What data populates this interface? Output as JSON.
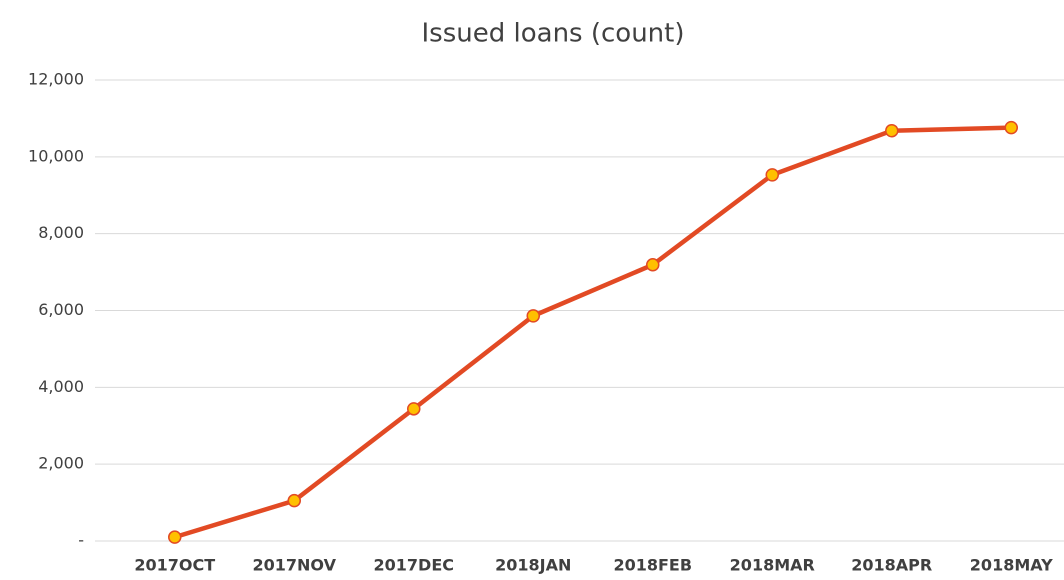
{
  "chart_data": {
    "type": "line",
    "title": "Issued loans (count)",
    "categories": [
      "2017OCT",
      "2017NOV",
      "2017DEC",
      "2018JAN",
      "2018FEB",
      "2018MAR",
      "2018APR",
      "2018MAY"
    ],
    "series": [
      {
        "color": "#e24a24",
        "marker_color": "#ffc000",
        "values": [
          100,
          1050,
          3440,
          5860,
          7190,
          9530,
          10680,
          10760
        ]
      }
    ],
    "ylim": [
      0,
      12000
    ],
    "yticks": [
      {
        "value": 0,
        "label": "-"
      },
      {
        "value": 2000,
        "label": "2,000"
      },
      {
        "value": 4000,
        "label": "4,000"
      },
      {
        "value": 6000,
        "label": "6,000"
      },
      {
        "value": 8000,
        "label": "8,000"
      },
      {
        "value": 10000,
        "label": "10,000"
      },
      {
        "value": 12000,
        "label": "12,000"
      }
    ],
    "grid": true
  }
}
